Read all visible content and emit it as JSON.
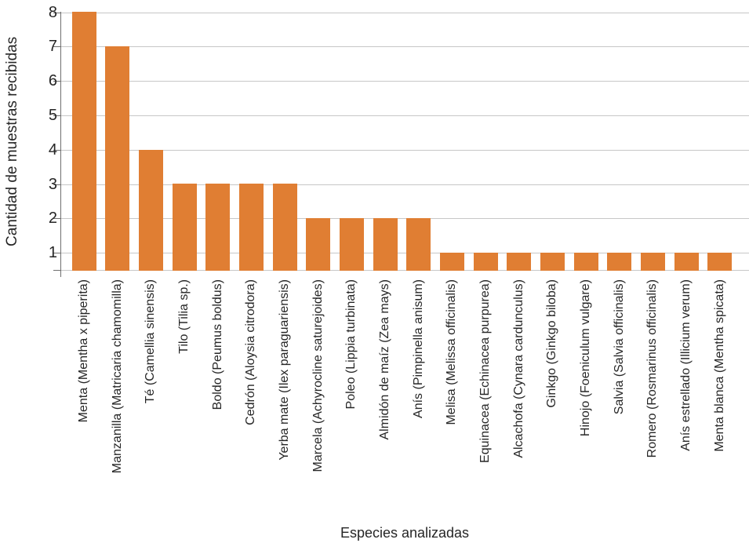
{
  "chart_data": {
    "type": "bar",
    "title": "",
    "xlabel": "Especies analizadas",
    "ylabel": "Cantidad de muestras recibidas",
    "categories": [
      "Menta (Mentha x piperita)",
      "Manzanilla (Matricaria chamomilla)",
      "Té (Camellia sinensis)",
      "Tilo (Tilia sp.)",
      "Boldo (Peumus boldus)",
      "Cedrón (Aloysia citrodora)",
      "Yerba mate (Ilex paraguariensis)",
      "Marcela (Achyrocline saturejoides)",
      "Poleo (Lippia turbinata)",
      "Almidón de maíz (Zea mays)",
      "Anís (Pimpinella anisum)",
      "Melisa (Melissa officinalis)",
      "Equinacea (Echinacea purpurea)",
      "Alcachofa (Cynara cardunculus)",
      "Ginkgo (Ginkgo biloba)",
      "Hinojo (Foeniculum vulgare)",
      "Salvia (Salvia officinalis)",
      "Romero (Rosmarinus officinalis)",
      "Anís estrellado (Illicium verum)",
      "Menta blanca (Mentha spicata)"
    ],
    "values": [
      8,
      7,
      4,
      3,
      3,
      3,
      3,
      2,
      2,
      2,
      2,
      1,
      1,
      1,
      1,
      1,
      1,
      1,
      1,
      1
    ],
    "yticks": [
      1,
      2,
      3,
      4,
      5,
      6,
      7,
      8
    ],
    "ylim": [
      0.5,
      8
    ],
    "grid": true,
    "legend": false,
    "bar_orientation": "vertical",
    "x_label_rotation_deg": 90
  },
  "colors": {
    "bar": "#e07e33",
    "grid": "#c7c7c7",
    "axis": "#6f6f6f",
    "text": "#262626"
  }
}
